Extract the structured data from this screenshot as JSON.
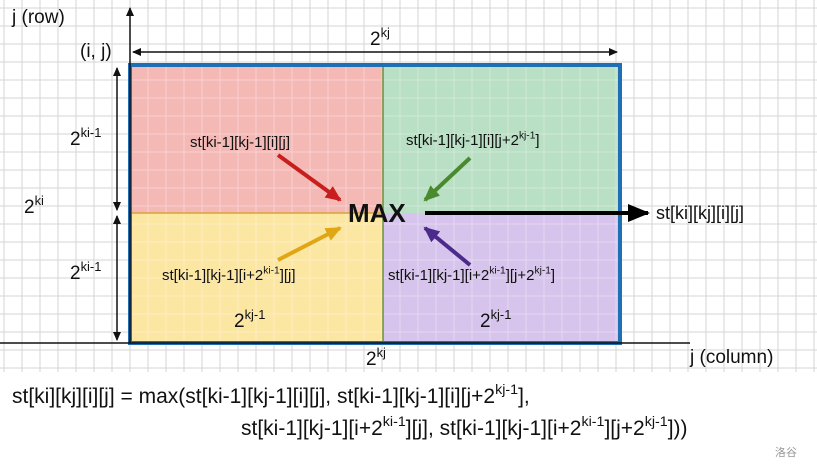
{
  "axes": {
    "y_label": [
      {
        "t": "j (row)"
      }
    ],
    "x_label": [
      {
        "t": "j (column)"
      }
    ],
    "origin_label": [
      {
        "t": "(i, j)"
      }
    ]
  },
  "dimensions": {
    "top_width": [
      {
        "t": "2"
      },
      {
        "t": "kj",
        "sup": true
      }
    ],
    "bottom_width": [
      {
        "t": "2"
      },
      {
        "t": "kj",
        "sup": true
      }
    ],
    "total_height": [
      {
        "t": "2"
      },
      {
        "t": "ki",
        "sup": true
      }
    ],
    "upper_half_height": [
      {
        "t": "2"
      },
      {
        "t": "ki-1",
        "sup": true
      }
    ],
    "lower_half_height": [
      {
        "t": "2"
      },
      {
        "t": "ki-1",
        "sup": true
      }
    ],
    "yellow_width": [
      {
        "t": "2"
      },
      {
        "t": "kj-1",
        "sup": true
      }
    ],
    "purple_width": [
      {
        "t": "2"
      },
      {
        "t": "kj-1",
        "sup": true
      }
    ]
  },
  "quadrants": {
    "top_left": {
      "color": "#f4b8b5",
      "arrow_color": "#c81e1e",
      "label": [
        {
          "t": "st[ki-1][kj-1][i][j]"
        }
      ]
    },
    "top_right": {
      "color": "#b9dfc4",
      "arrow_color": "#4a8a2e",
      "label": [
        {
          "t": "st[ki-1][kj-1][i][j+2"
        },
        {
          "t": "kj-1",
          "sup": true
        },
        {
          "t": "]"
        }
      ]
    },
    "bottom_left": {
      "color": "#fbe6a2",
      "arrow_color": "#e0a614",
      "label": [
        {
          "t": "st[ki-1][kj-1][i+2"
        },
        {
          "t": "ki-1",
          "sup": true
        },
        {
          "t": "][j]"
        }
      ]
    },
    "bottom_right": {
      "color": "#d6c4ec",
      "arrow_color": "#4b2a8c",
      "label": [
        {
          "t": "st[ki-1][kj-1][i+2"
        },
        {
          "t": "ki-1",
          "sup": true
        },
        {
          "t": "][j+2"
        },
        {
          "t": "kj-1",
          "sup": true
        },
        {
          "t": "]"
        }
      ]
    }
  },
  "center_label": [
    {
      "t": "MAX"
    }
  ],
  "result_label": [
    {
      "t": "st[ki][kj][i][j]"
    }
  ],
  "border_color": "#1f6fb5",
  "formula": {
    "line1": [
      {
        "t": "st[ki][kj][i][j] = max(st[ki-1][kj-1][i][j], st[ki-1][kj-1][i][j+2"
      },
      {
        "t": "kj-1",
        "sup": true
      },
      {
        "t": "],"
      }
    ],
    "line2": [
      {
        "t": "st[ki-1][kj-1][i+2"
      },
      {
        "t": "ki-1",
        "sup": true
      },
      {
        "t": "][j], st[ki-1][kj-1][i+2"
      },
      {
        "t": "ki-1",
        "sup": true
      },
      {
        "t": "][j+2"
      },
      {
        "t": "kj-1",
        "sup": true
      },
      {
        "t": "]))"
      }
    ]
  },
  "watermark": "洛谷"
}
